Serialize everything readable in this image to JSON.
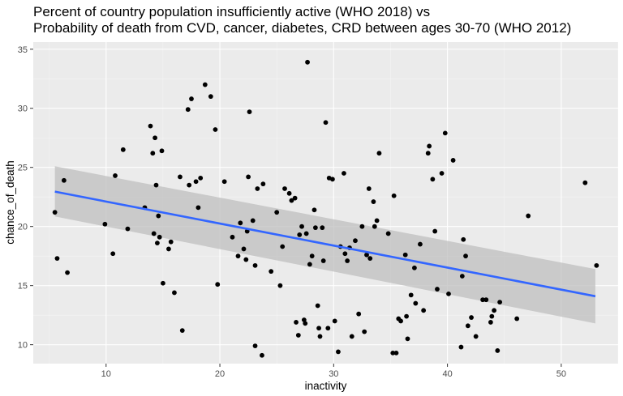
{
  "chart_data": {
    "type": "scatter",
    "title_lines": [
      "Percent of country population insufficiently active (WHO 2018) vs",
      "Probability of death from CVD, cancer, diabetes, CRD between ages 30-70 (WHO 2012)"
    ],
    "xlabel": "inactivity",
    "ylabel": "chance_of_death",
    "xlim": [
      3.6,
      55.0
    ],
    "ylim": [
      8.4,
      35.6
    ],
    "x_ticks": [
      "10",
      "20",
      "30",
      "40",
      "50"
    ],
    "x_tick_values": [
      10,
      20,
      30,
      40,
      50
    ],
    "y_ticks": [
      "10",
      "15",
      "20",
      "25",
      "30",
      "35"
    ],
    "y_tick_values": [
      10,
      15,
      20,
      25,
      30,
      35
    ],
    "grid": true,
    "colors": {
      "panel": "#ebebeb",
      "grid_major": "#ffffff",
      "points": "#000000",
      "fit_line": "#3366ff",
      "confidence_band": "#bfbfbf"
    },
    "trend": {
      "method": "lm",
      "x": [
        5.5,
        53.0
      ],
      "y": [
        22.95,
        14.1
      ],
      "band_lower": [
        20.85,
        11.8
      ],
      "band_upper": [
        25.1,
        16.4
      ]
    },
    "points": [
      [
        5.5,
        21.2
      ],
      [
        5.7,
        17.3
      ],
      [
        6.3,
        23.9
      ],
      [
        6.6,
        16.1
      ],
      [
        9.9,
        20.2
      ],
      [
        10.6,
        17.7
      ],
      [
        10.8,
        24.3
      ],
      [
        11.5,
        26.5
      ],
      [
        11.9,
        19.8
      ],
      [
        13.4,
        21.6
      ],
      [
        13.9,
        28.5
      ],
      [
        14.1,
        26.2
      ],
      [
        14.2,
        19.4
      ],
      [
        14.3,
        27.5
      ],
      [
        14.4,
        23.5
      ],
      [
        14.5,
        18.6
      ],
      [
        14.6,
        20.9
      ],
      [
        14.7,
        19.1
      ],
      [
        14.9,
        26.4
      ],
      [
        15.0,
        15.2
      ],
      [
        15.5,
        18.1
      ],
      [
        15.7,
        18.7
      ],
      [
        16.0,
        14.4
      ],
      [
        16.5,
        24.2
      ],
      [
        16.7,
        11.2
      ],
      [
        17.2,
        29.9
      ],
      [
        17.3,
        23.5
      ],
      [
        17.5,
        30.8
      ],
      [
        17.9,
        23.8
      ],
      [
        18.1,
        21.6
      ],
      [
        18.3,
        24.1
      ],
      [
        18.7,
        32.0
      ],
      [
        19.2,
        31.0
      ],
      [
        19.6,
        28.2
      ],
      [
        19.8,
        15.1
      ],
      [
        20.4,
        23.8
      ],
      [
        21.1,
        19.1
      ],
      [
        21.6,
        17.5
      ],
      [
        21.8,
        20.3
      ],
      [
        22.1,
        18.1
      ],
      [
        22.3,
        17.2
      ],
      [
        22.4,
        19.6
      ],
      [
        22.5,
        24.2
      ],
      [
        22.6,
        29.7
      ],
      [
        22.9,
        20.5
      ],
      [
        23.1,
        9.9
      ],
      [
        23.1,
        16.7
      ],
      [
        23.3,
        23.2
      ],
      [
        23.7,
        9.1
      ],
      [
        23.8,
        23.6
      ],
      [
        24.5,
        16.2
      ],
      [
        25.0,
        21.2
      ],
      [
        25.3,
        15.0
      ],
      [
        25.5,
        18.3
      ],
      [
        25.7,
        23.2
      ],
      [
        26.1,
        22.8
      ],
      [
        26.3,
        22.2
      ],
      [
        26.6,
        22.4
      ],
      [
        26.7,
        11.9
      ],
      [
        26.9,
        10.8
      ],
      [
        27.0,
        19.3
      ],
      [
        27.2,
        20.0
      ],
      [
        27.4,
        12.1
      ],
      [
        27.5,
        11.8
      ],
      [
        27.6,
        19.4
      ],
      [
        27.7,
        33.9
      ],
      [
        27.9,
        16.8
      ],
      [
        28.1,
        17.5
      ],
      [
        28.3,
        21.4
      ],
      [
        28.4,
        19.9
      ],
      [
        28.6,
        13.3
      ],
      [
        28.7,
        11.4
      ],
      [
        28.8,
        10.7
      ],
      [
        29.0,
        19.9
      ],
      [
        29.1,
        17.1
      ],
      [
        29.3,
        28.8
      ],
      [
        29.5,
        11.4
      ],
      [
        29.6,
        24.1
      ],
      [
        29.9,
        24.0
      ],
      [
        30.1,
        12.0
      ],
      [
        30.4,
        9.4
      ],
      [
        30.6,
        18.3
      ],
      [
        30.9,
        24.5
      ],
      [
        31.0,
        17.7
      ],
      [
        31.2,
        17.1
      ],
      [
        31.4,
        18.2
      ],
      [
        31.6,
        10.7
      ],
      [
        31.9,
        18.8
      ],
      [
        32.2,
        12.6
      ],
      [
        32.5,
        20.0
      ],
      [
        32.7,
        11.1
      ],
      [
        32.9,
        17.6
      ],
      [
        33.1,
        23.2
      ],
      [
        33.2,
        17.3
      ],
      [
        33.5,
        22.1
      ],
      [
        33.6,
        20.0
      ],
      [
        33.8,
        20.5
      ],
      [
        34.0,
        26.2
      ],
      [
        34.8,
        19.4
      ],
      [
        35.2,
        9.3
      ],
      [
        35.3,
        22.6
      ],
      [
        35.5,
        9.3
      ],
      [
        35.7,
        12.2
      ],
      [
        35.9,
        12.0
      ],
      [
        36.3,
        17.6
      ],
      [
        36.4,
        12.4
      ],
      [
        36.5,
        10.5
      ],
      [
        36.8,
        14.2
      ],
      [
        37.1,
        16.5
      ],
      [
        37.2,
        13.5
      ],
      [
        37.6,
        18.5
      ],
      [
        37.9,
        12.9
      ],
      [
        38.3,
        26.2
      ],
      [
        38.4,
        26.8
      ],
      [
        38.7,
        24.0
      ],
      [
        38.9,
        19.6
      ],
      [
        39.1,
        14.7
      ],
      [
        39.5,
        24.5
      ],
      [
        39.8,
        27.9
      ],
      [
        40.1,
        14.3
      ],
      [
        40.5,
        25.6
      ],
      [
        41.2,
        9.8
      ],
      [
        41.3,
        15.8
      ],
      [
        41.4,
        18.9
      ],
      [
        41.6,
        17.5
      ],
      [
        41.8,
        11.6
      ],
      [
        42.1,
        12.3
      ],
      [
        42.5,
        10.7
      ],
      [
        43.1,
        13.8
      ],
      [
        43.4,
        13.8
      ],
      [
        43.8,
        11.9
      ],
      [
        43.9,
        12.4
      ],
      [
        44.1,
        12.9
      ],
      [
        44.4,
        9.5
      ],
      [
        44.6,
        13.6
      ],
      [
        46.1,
        12.2
      ],
      [
        47.1,
        20.9
      ],
      [
        52.1,
        23.7
      ],
      [
        53.1,
        16.7
      ]
    ]
  }
}
